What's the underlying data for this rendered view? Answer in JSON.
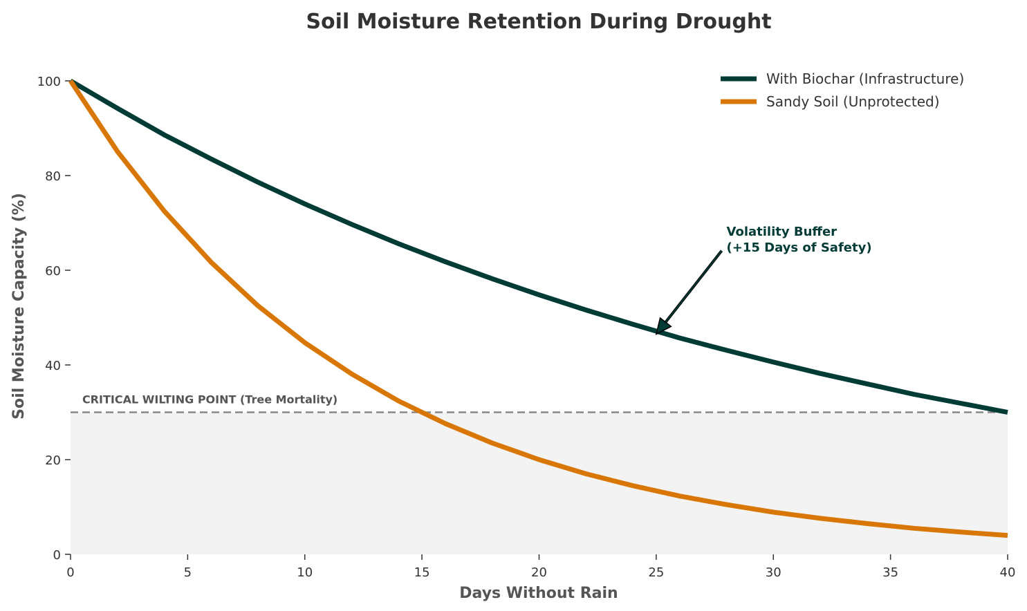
{
  "chart_data": {
    "type": "line",
    "title": "Soil Moisture Retention During Drought",
    "xlabel": "Days Without Rain",
    "ylabel": "Soil Moisture Capacity (%)",
    "xlim": [
      0,
      40
    ],
    "ylim": [
      0,
      100
    ],
    "xticks": [
      0,
      5,
      10,
      15,
      20,
      25,
      30,
      35,
      40
    ],
    "yticks": [
      0,
      20,
      40,
      60,
      80,
      100
    ],
    "grid": false,
    "legend_position": "top-right",
    "x": [
      0,
      2,
      4,
      6,
      8,
      10,
      12,
      14,
      16,
      18,
      20,
      22,
      24,
      26,
      28,
      30,
      32,
      34,
      36,
      38,
      40
    ],
    "series": [
      {
        "name": "With Biochar (Infrastructure)",
        "color": "#003b36",
        "values": [
          100,
          94.2,
          88.6,
          83.5,
          78.6,
          74.0,
          69.7,
          65.6,
          61.8,
          58.2,
          54.8,
          51.6,
          48.6,
          45.7,
          43.1,
          40.6,
          38.2,
          36.0,
          33.8,
          31.9,
          30.0
        ]
      },
      {
        "name": "Sandy Soil (Unprotected)",
        "color": "#d97706",
        "values": [
          100,
          85.1,
          72.5,
          61.7,
          52.5,
          44.7,
          38.1,
          32.4,
          27.6,
          23.5,
          20.0,
          17.0,
          14.5,
          12.3,
          10.5,
          8.9,
          7.6,
          6.5,
          5.5,
          4.7,
          4.0
        ]
      }
    ],
    "threshold": {
      "value": 30,
      "label": "CRITICAL WILTING POINT (Tree Mortality)",
      "line_color": "#888888",
      "zone_fill": "#f3f3f3"
    },
    "annotation": {
      "lines": [
        "Volatility Buffer",
        "(+15 Days of Safety)"
      ],
      "text_x": 28,
      "text_y": 65,
      "point_x": 25,
      "point_y": 46.5,
      "color": "#003b36"
    }
  }
}
